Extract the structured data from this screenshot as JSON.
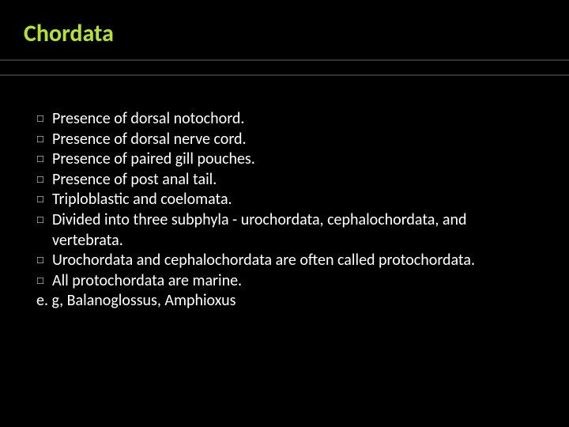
{
  "title": "Chordata",
  "bullets": [
    {
      "text": "Presence of dorsal notochord."
    },
    {
      "text": "Presence of dorsal nerve cord."
    },
    {
      "text": "Presence of paired gill pouches."
    },
    {
      "text": "Presence of post anal tail."
    },
    {
      "text": "Triploblastic and coelomata."
    },
    {
      "text": "Divided into three subphyla - urochordata, cephalochordata, and vertebrata."
    },
    {
      "text": "Urochordata and cephalochordata are often called protochordata."
    },
    {
      "text": "All protochordata are marine."
    }
  ],
  "footer": "e. g, Balanoglossus, Amphioxus",
  "colors": {
    "background": "#000000",
    "title": "#b5e61d",
    "text": "#ffffff",
    "rule": "#333333",
    "bullet_symbol": "#cccccc"
  },
  "bullet_symbol": "☐",
  "typography": {
    "title_fontsize": 30,
    "body_fontsize": 20,
    "title_weight": "bold",
    "body_weight": 500
  }
}
